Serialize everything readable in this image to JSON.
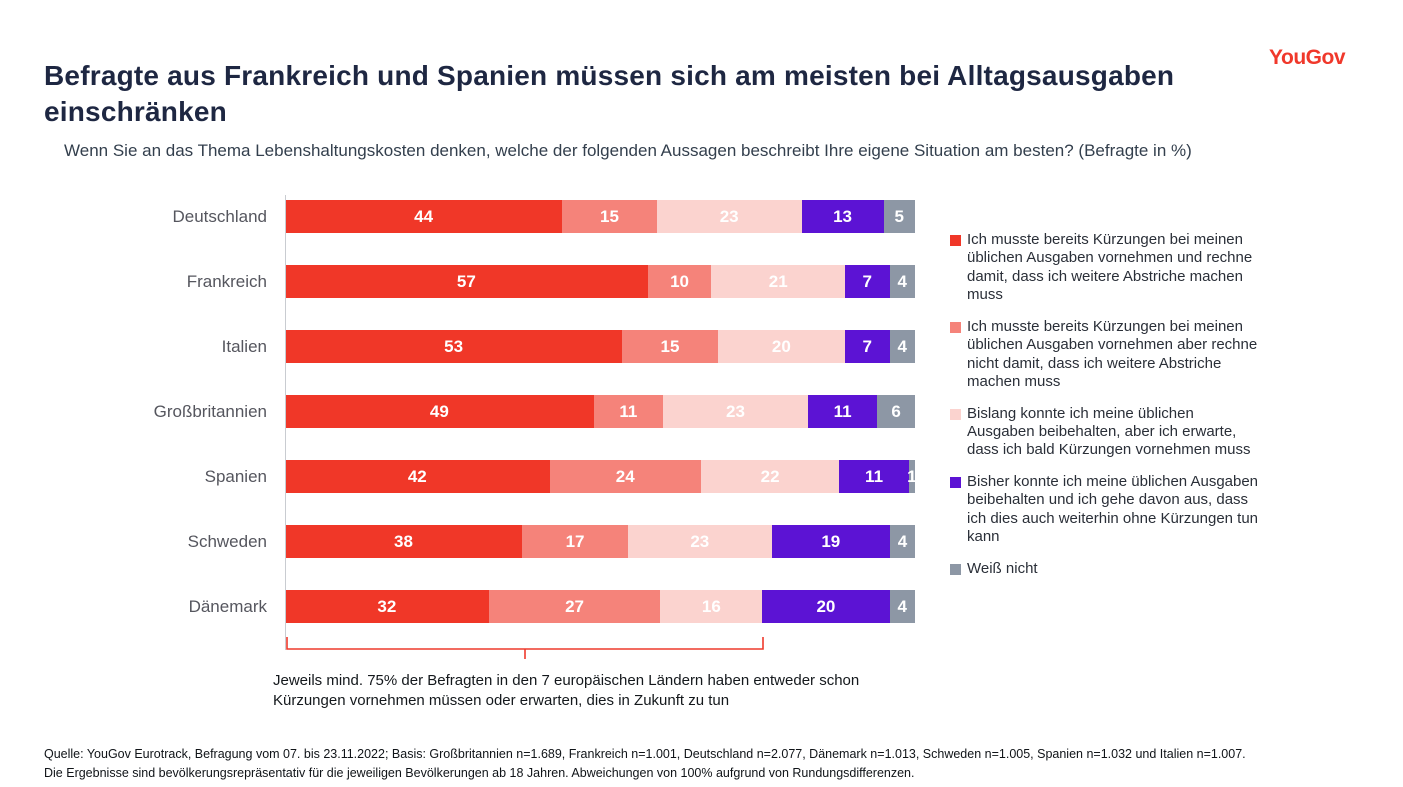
{
  "logo": {
    "text": "YouGov",
    "brand_color": "#f0382b"
  },
  "title": "Befragte aus Frankreich und Spanien müssen sich am meisten bei Alltagsausgaben einschränken",
  "subtitle": "Wenn Sie an das Thema Lebenshaltungskosten denken, welche der folgenden Aussagen beschreibt Ihre eigene Situation am besten? (Befragte in %)",
  "chart_data": {
    "type": "bar",
    "stacked": true,
    "orientation": "horizontal",
    "xlim": [
      0,
      100
    ],
    "grid": false,
    "legend_position": "right",
    "categories": [
      "Deutschland",
      "Frankreich",
      "Italien",
      "Großbritannien",
      "Spanien",
      "Schweden",
      "Dänemark"
    ],
    "series": [
      {
        "name": "Ich musste bereits Kürzungen bei meinen üblichen Ausgaben vornehmen und rechne damit, dass ich weitere Abstriche machen muss",
        "color": "#f03728",
        "values": [
          44,
          57,
          53,
          49,
          42,
          38,
          32
        ]
      },
      {
        "name": "Ich musste bereits Kürzungen bei meinen üblichen Ausgaben vornehmen aber rechne nicht damit, dass ich weitere Abstriche machen muss",
        "color": "#f5837a",
        "values": [
          15,
          10,
          15,
          11,
          24,
          17,
          27
        ]
      },
      {
        "name": "Bislang konnte ich meine üblichen Ausgaben beibehalten, aber ich erwarte, dass ich bald Kürzungen vornehmen muss",
        "color": "#fbd3cf",
        "values": [
          23,
          21,
          20,
          23,
          22,
          23,
          16
        ]
      },
      {
        "name": "Bisher konnte ich meine üblichen Ausgaben beibehalten und ich gehe davon aus, dass ich dies auch weiterhin ohne Kürzungen tun kann",
        "color": "#5c13d4",
        "values": [
          13,
          7,
          7,
          11,
          11,
          19,
          20
        ]
      },
      {
        "name": "Weiß nicht",
        "color": "#8d97a5",
        "values": [
          5,
          4,
          4,
          6,
          1,
          4,
          4
        ]
      }
    ]
  },
  "annotation": [
    "Jeweils mind. 75% der Befragten in den 7 europäischen Ländern haben entweder schon",
    "Kürzungen vornehmen müssen oder erwarten, dies in Zukunft zu tun"
  ],
  "footer": {
    "line1": "Quelle: YouGov Eurotrack, Befragung vom 07. bis 23.11.2022; Basis: Großbritannien n=1.689, Frankreich n=1.001, Deutschland n=2.077, Dänemark n=1.013, Schweden n=1.005, Spanien n=1.032 und Italien n=1.007.",
    "line2": "Die Ergebnisse sind bevölkerungsrepräsentativ für die jeweiligen Bevölkerungen ab 18 Jahren. Abweichungen von 100% aufgrund von Rundungsdifferenzen."
  }
}
